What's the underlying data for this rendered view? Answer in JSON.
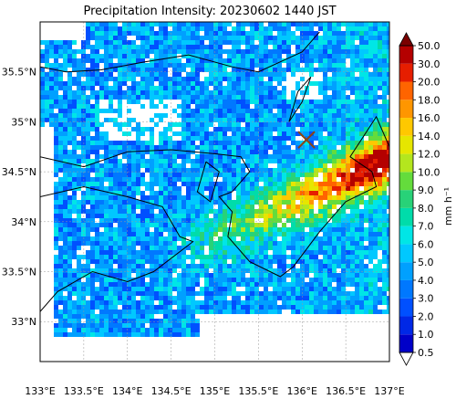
{
  "title": "Precipitation Intensity: 20230602 1440 JST",
  "map": {
    "lon_ticks": [
      "133°E",
      "133.5°E",
      "134°E",
      "134.5°E",
      "135°E",
      "135.5°E",
      "136°E",
      "136.5°E",
      "137°E"
    ],
    "lat_ticks": [
      "35.5°N",
      "35°N",
      "34.5°N",
      "34°N",
      "33.5°N",
      "33°N"
    ],
    "lon_range": [
      133.0,
      137.0
    ],
    "lat_range": [
      32.6,
      36.0
    ],
    "marker": {
      "lon": 136.05,
      "lat": 34.82,
      "symbol": "x",
      "color": "#8b4513"
    },
    "gridlines": true
  },
  "colorbar": {
    "unit": "mm h⁻¹",
    "levels": [
      "0.5",
      "1.0",
      "2.0",
      "3.0",
      "4.0",
      "5.0",
      "6.0",
      "7.0",
      "8.0",
      "9.0",
      "10.0",
      "12.0",
      "14.0",
      "16.0",
      "18.0",
      "20.0",
      "30.0",
      "50.0"
    ],
    "colors": [
      "#0000c8",
      "#0028e6",
      "#0050ff",
      "#0078ff",
      "#00a0ff",
      "#00c8ff",
      "#00e6e6",
      "#00dcaa",
      "#28d278",
      "#64dc3c",
      "#b4e61e",
      "#e6e600",
      "#ffc800",
      "#ff9600",
      "#ff6400",
      "#e61e00",
      "#b40000"
    ],
    "extend": "both",
    "under_color": "#ffffff",
    "over_color": "#7a0000"
  }
}
